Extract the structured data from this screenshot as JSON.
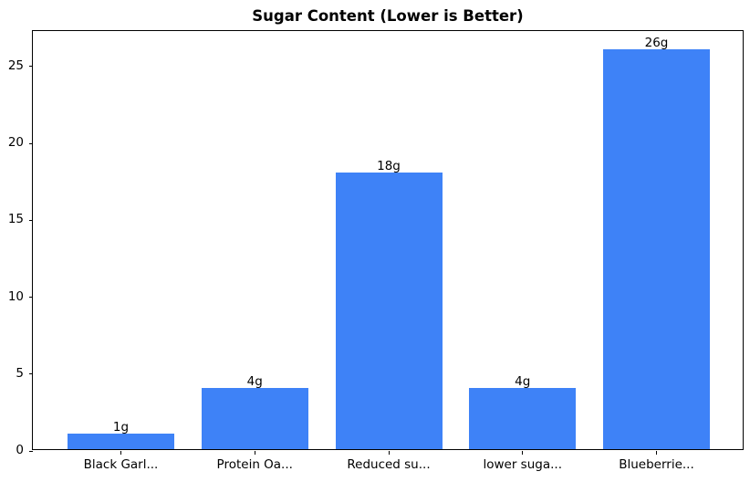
{
  "chart_data": {
    "type": "bar",
    "title": "Sugar Content (Lower is Better)",
    "categories": [
      "Black Garl...",
      "Protein Oa...",
      "Reduced su...",
      "lower suga...",
      "Blueberrie..."
    ],
    "values": [
      1,
      4,
      18,
      4,
      26
    ],
    "bar_labels": [
      "1g",
      "4g",
      "18g",
      "4g",
      "26g"
    ],
    "yticks": [
      "0",
      "5",
      "10",
      "15",
      "20",
      "25"
    ],
    "ytick_values": [
      0,
      5,
      10,
      15,
      20,
      25
    ],
    "ylim": [
      0,
      27.3
    ],
    "xlabel": "",
    "ylabel": "",
    "grid": "off",
    "legend": "none",
    "colors": {
      "bar": "#3E82F7",
      "axis": "#000000",
      "background": "#FFFFFF",
      "text": "#000000"
    }
  }
}
